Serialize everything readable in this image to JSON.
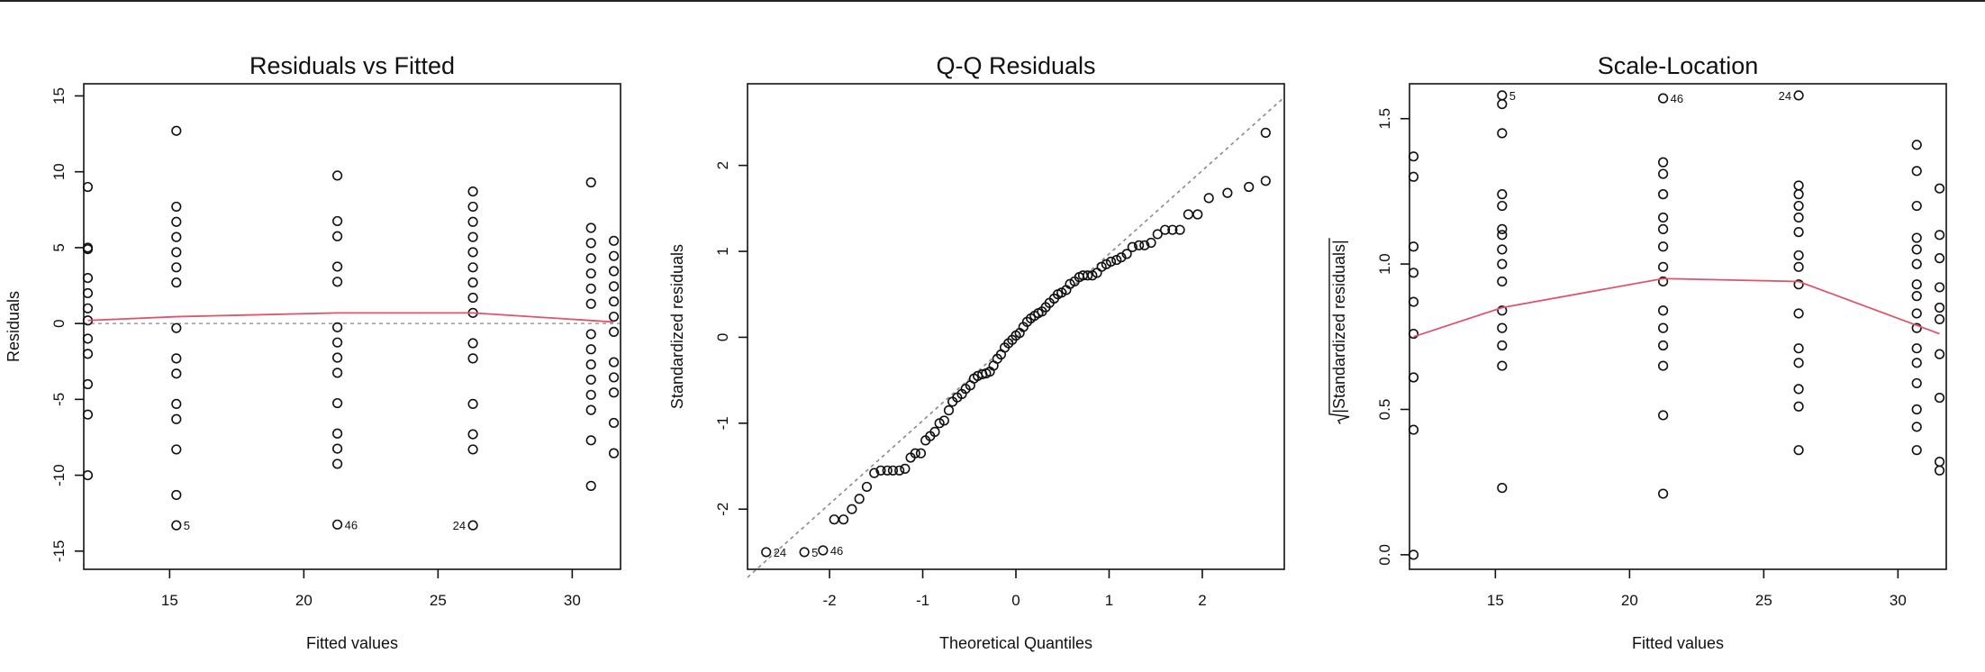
{
  "chart_data": [
    {
      "type": "scatter",
      "title": "Residuals vs Fitted",
      "xlabel": "Fitted values",
      "ylabel": "Residuals",
      "xlim": [
        11.8,
        31.8
      ],
      "ylim": [
        -16.2,
        15.8
      ],
      "xticks": [
        15,
        20,
        25,
        30
      ],
      "yticks": [
        -15,
        -10,
        -5,
        0,
        5,
        10,
        15
      ],
      "reference_line": 0,
      "smooth_color": "#DF536B",
      "points": [
        [
          11.95,
          9
        ],
        [
          11.95,
          5
        ],
        [
          11.95,
          4.9
        ],
        [
          11.95,
          3
        ],
        [
          11.95,
          2
        ],
        [
          11.95,
          1
        ],
        [
          11.95,
          0.2
        ],
        [
          11.95,
          -1
        ],
        [
          11.95,
          -2
        ],
        [
          11.95,
          -4
        ],
        [
          11.95,
          -6
        ],
        [
          11.95,
          -10
        ],
        [
          15.25,
          12.7
        ],
        [
          15.25,
          7.7
        ],
        [
          15.25,
          6.7
        ],
        [
          15.25,
          5.7
        ],
        [
          15.25,
          4.7
        ],
        [
          15.25,
          3.7
        ],
        [
          15.25,
          2.7
        ],
        [
          15.25,
          -0.3
        ],
        [
          15.25,
          -2.3
        ],
        [
          15.25,
          -3.3
        ],
        [
          15.25,
          -5.3
        ],
        [
          15.25,
          -6.3
        ],
        [
          15.25,
          -8.3
        ],
        [
          15.25,
          -11.3
        ],
        [
          15.25,
          -13.3
        ],
        [
          21.25,
          9.75
        ],
        [
          21.25,
          6.75
        ],
        [
          21.25,
          5.75
        ],
        [
          21.25,
          3.75
        ],
        [
          21.25,
          2.75
        ],
        [
          21.25,
          -0.25
        ],
        [
          21.25,
          -1.25
        ],
        [
          21.25,
          -2.25
        ],
        [
          21.25,
          -3.25
        ],
        [
          21.25,
          -5.25
        ],
        [
          21.25,
          -7.25
        ],
        [
          21.25,
          -8.25
        ],
        [
          21.25,
          -9.25
        ],
        [
          21.25,
          -13.25
        ],
        [
          26.3,
          8.7
        ],
        [
          26.3,
          7.7
        ],
        [
          26.3,
          6.7
        ],
        [
          26.3,
          5.7
        ],
        [
          26.3,
          4.7
        ],
        [
          26.3,
          3.7
        ],
        [
          26.3,
          2.7
        ],
        [
          26.3,
          1.7
        ],
        [
          26.3,
          0.7
        ],
        [
          26.3,
          -1.3
        ],
        [
          26.3,
          -2.3
        ],
        [
          26.3,
          -5.3
        ],
        [
          26.3,
          -7.3
        ],
        [
          26.3,
          -8.3
        ],
        [
          26.3,
          -13.3
        ],
        [
          30.7,
          9.3
        ],
        [
          30.7,
          6.3
        ],
        [
          30.7,
          5.3
        ],
        [
          30.7,
          4.3
        ],
        [
          30.7,
          3.3
        ],
        [
          30.7,
          2.3
        ],
        [
          30.7,
          1.3
        ],
        [
          30.7,
          -0.7
        ],
        [
          30.7,
          -1.7
        ],
        [
          30.7,
          -2.7
        ],
        [
          30.7,
          -3.7
        ],
        [
          30.7,
          -4.7
        ],
        [
          30.7,
          -5.7
        ],
        [
          30.7,
          -7.7
        ],
        [
          30.7,
          -10.7
        ],
        [
          31.55,
          5.45
        ],
        [
          31.55,
          4.45
        ],
        [
          31.55,
          3.45
        ],
        [
          31.55,
          2.45
        ],
        [
          31.55,
          1.45
        ],
        [
          31.55,
          0.45
        ],
        [
          31.55,
          -0.55
        ],
        [
          31.55,
          -2.55
        ],
        [
          31.55,
          -3.55
        ],
        [
          31.55,
          -4.55
        ],
        [
          31.55,
          -6.55
        ],
        [
          31.55,
          -8.55
        ]
      ],
      "smooth": [
        [
          11.95,
          0.2
        ],
        [
          15.25,
          0.45
        ],
        [
          21.25,
          0.7
        ],
        [
          26.3,
          0.7
        ],
        [
          31.55,
          0.1
        ]
      ],
      "annotations": [
        {
          "label": "5",
          "x": 15.25,
          "y": -13.3,
          "side": "right"
        },
        {
          "label": "46",
          "x": 21.25,
          "y": -13.25,
          "side": "right"
        },
        {
          "label": "24",
          "x": 26.3,
          "y": -13.3,
          "side": "left"
        }
      ]
    },
    {
      "type": "scatter",
      "title": "Q-Q Residuals",
      "xlabel": "Theoretical Quantiles",
      "ylabel": "Standardized residuals",
      "xlim": [
        -2.88,
        2.88
      ],
      "ylim": [
        -2.7,
        2.95
      ],
      "xticks": [
        -2,
        -1,
        0,
        1,
        2
      ],
      "yticks": [
        -2,
        -1,
        0,
        1,
        2
      ],
      "reference_diagonal": {
        "slope": 0.97,
        "intercept": 0
      },
      "points": [
        [
          -2.68,
          -2.5
        ],
        [
          -2.27,
          -2.5
        ],
        [
          -2.07,
          -2.48
        ],
        [
          -1.95,
          -2.12
        ],
        [
          -1.85,
          -2.12
        ],
        [
          -1.76,
          -2.0
        ],
        [
          -1.68,
          -1.88
        ],
        [
          -1.6,
          -1.74
        ],
        [
          -1.52,
          -1.58
        ],
        [
          -1.45,
          -1.55
        ],
        [
          -1.38,
          -1.55
        ],
        [
          -1.32,
          -1.55
        ],
        [
          -1.25,
          -1.55
        ],
        [
          -1.19,
          -1.53
        ],
        [
          -1.13,
          -1.4
        ],
        [
          -1.08,
          -1.35
        ],
        [
          -1.02,
          -1.35
        ],
        [
          -0.97,
          -1.2
        ],
        [
          -0.92,
          -1.15
        ],
        [
          -0.87,
          -1.1
        ],
        [
          -0.82,
          -1.0
        ],
        [
          -0.77,
          -0.97
        ],
        [
          -0.72,
          -0.85
        ],
        [
          -0.68,
          -0.75
        ],
        [
          -0.63,
          -0.7
        ],
        [
          -0.58,
          -0.66
        ],
        [
          -0.54,
          -0.6
        ],
        [
          -0.49,
          -0.56
        ],
        [
          -0.45,
          -0.48
        ],
        [
          -0.41,
          -0.45
        ],
        [
          -0.36,
          -0.43
        ],
        [
          -0.32,
          -0.42
        ],
        [
          -0.28,
          -0.4
        ],
        [
          -0.24,
          -0.33
        ],
        [
          -0.2,
          -0.25
        ],
        [
          -0.16,
          -0.2
        ],
        [
          -0.12,
          -0.12
        ],
        [
          -0.08,
          -0.07
        ],
        [
          -0.04,
          -0.03
        ],
        [
          0,
          0.02
        ],
        [
          0.04,
          0.05
        ],
        [
          0.08,
          0.12
        ],
        [
          0.12,
          0.18
        ],
        [
          0.16,
          0.22
        ],
        [
          0.2,
          0.25
        ],
        [
          0.24,
          0.28
        ],
        [
          0.28,
          0.3
        ],
        [
          0.32,
          0.35
        ],
        [
          0.36,
          0.4
        ],
        [
          0.41,
          0.45
        ],
        [
          0.45,
          0.5
        ],
        [
          0.49,
          0.52
        ],
        [
          0.54,
          0.55
        ],
        [
          0.58,
          0.62
        ],
        [
          0.63,
          0.65
        ],
        [
          0.68,
          0.7
        ],
        [
          0.72,
          0.72
        ],
        [
          0.77,
          0.72
        ],
        [
          0.82,
          0.72
        ],
        [
          0.87,
          0.75
        ],
        [
          0.92,
          0.82
        ],
        [
          0.97,
          0.85
        ],
        [
          1.02,
          0.88
        ],
        [
          1.08,
          0.9
        ],
        [
          1.13,
          0.93
        ],
        [
          1.19,
          0.97
        ],
        [
          1.25,
          1.05
        ],
        [
          1.32,
          1.07
        ],
        [
          1.38,
          1.07
        ],
        [
          1.45,
          1.1
        ],
        [
          1.52,
          1.2
        ],
        [
          1.6,
          1.25
        ],
        [
          1.68,
          1.25
        ],
        [
          1.76,
          1.25
        ],
        [
          1.85,
          1.43
        ],
        [
          1.95,
          1.43
        ],
        [
          2.07,
          1.62
        ],
        [
          2.27,
          1.68
        ],
        [
          2.5,
          1.75
        ],
        [
          2.68,
          1.82
        ],
        [
          2.68,
          2.38
        ]
      ],
      "annotations": [
        {
          "label": "24",
          "x": -2.68,
          "y": -2.5,
          "side": "right"
        },
        {
          "label": "5",
          "x": -2.27,
          "y": -2.5,
          "side": "right"
        },
        {
          "label": "46",
          "x": -2.07,
          "y": -2.48,
          "side": "right"
        }
      ]
    },
    {
      "type": "scatter",
      "title": "Scale-Location",
      "xlabel": "Fitted values",
      "ylabel": "|Standardized residuals|",
      "ylabel_sqrt": true,
      "xlim": [
        11.8,
        31.8
      ],
      "ylim": [
        -0.05,
        1.62
      ],
      "xticks": [
        15,
        20,
        25,
        30
      ],
      "yticks": [
        0.0,
        0.5,
        1.0,
        1.5
      ],
      "ytick_labels": [
        "0.0",
        "0.5",
        "1.0",
        "1.5"
      ],
      "smooth_color": "#DF536B",
      "points": [
        [
          11.95,
          1.37
        ],
        [
          11.95,
          1.3
        ],
        [
          11.95,
          1.06
        ],
        [
          11.95,
          0.97
        ],
        [
          11.95,
          0.87
        ],
        [
          11.95,
          0.76
        ],
        [
          11.95,
          0.61
        ],
        [
          11.95,
          0.43
        ],
        [
          11.95,
          0.0
        ],
        [
          15.25,
          1.58
        ],
        [
          15.25,
          1.55
        ],
        [
          15.25,
          1.45
        ],
        [
          15.25,
          1.24
        ],
        [
          15.25,
          1.2
        ],
        [
          15.25,
          1.12
        ],
        [
          15.25,
          1.1
        ],
        [
          15.25,
          1.05
        ],
        [
          15.25,
          1.0
        ],
        [
          15.25,
          0.94
        ],
        [
          15.25,
          0.84
        ],
        [
          15.25,
          0.78
        ],
        [
          15.25,
          0.72
        ],
        [
          15.25,
          0.65
        ],
        [
          15.25,
          0.23
        ],
        [
          21.25,
          1.57
        ],
        [
          21.25,
          1.35
        ],
        [
          21.25,
          1.31
        ],
        [
          21.25,
          1.24
        ],
        [
          21.25,
          1.16
        ],
        [
          21.25,
          1.12
        ],
        [
          21.25,
          1.06
        ],
        [
          21.25,
          0.99
        ],
        [
          21.25,
          0.94
        ],
        [
          21.25,
          0.84
        ],
        [
          21.25,
          0.78
        ],
        [
          21.25,
          0.72
        ],
        [
          21.25,
          0.65
        ],
        [
          21.25,
          0.48
        ],
        [
          21.25,
          0.21
        ],
        [
          26.3,
          1.58
        ],
        [
          26.3,
          1.27
        ],
        [
          26.3,
          1.24
        ],
        [
          26.3,
          1.2
        ],
        [
          26.3,
          1.16
        ],
        [
          26.3,
          1.11
        ],
        [
          26.3,
          1.03
        ],
        [
          26.3,
          0.99
        ],
        [
          26.3,
          0.93
        ],
        [
          26.3,
          0.83
        ],
        [
          26.3,
          0.71
        ],
        [
          26.3,
          0.66
        ],
        [
          26.3,
          0.57
        ],
        [
          26.3,
          0.51
        ],
        [
          26.3,
          0.36
        ],
        [
          30.7,
          1.41
        ],
        [
          30.7,
          1.32
        ],
        [
          30.7,
          1.2
        ],
        [
          30.7,
          1.09
        ],
        [
          30.7,
          1.05
        ],
        [
          30.7,
          1.0
        ],
        [
          30.7,
          0.93
        ],
        [
          30.7,
          0.89
        ],
        [
          30.7,
          0.83
        ],
        [
          30.7,
          0.78
        ],
        [
          30.7,
          0.71
        ],
        [
          30.7,
          0.66
        ],
        [
          30.7,
          0.59
        ],
        [
          30.7,
          0.5
        ],
        [
          30.7,
          0.44
        ],
        [
          30.7,
          0.36
        ],
        [
          31.55,
          1.26
        ],
        [
          31.55,
          1.1
        ],
        [
          31.55,
          1.02
        ],
        [
          31.55,
          0.92
        ],
        [
          31.55,
          0.85
        ],
        [
          31.55,
          0.81
        ],
        [
          31.55,
          0.69
        ],
        [
          31.55,
          0.54
        ],
        [
          31.55,
          0.32
        ],
        [
          31.55,
          0.29
        ]
      ],
      "smooth": [
        [
          11.95,
          0.75
        ],
        [
          15.25,
          0.85
        ],
        [
          21.25,
          0.95
        ],
        [
          26.3,
          0.94
        ],
        [
          31.55,
          0.76
        ]
      ],
      "annotations": [
        {
          "label": "5",
          "x": 15.25,
          "y": 1.58,
          "side": "right"
        },
        {
          "label": "46",
          "x": 21.25,
          "y": 1.57,
          "side": "right"
        },
        {
          "label": "24",
          "x": 26.3,
          "y": 1.58,
          "side": "left"
        }
      ]
    }
  ]
}
